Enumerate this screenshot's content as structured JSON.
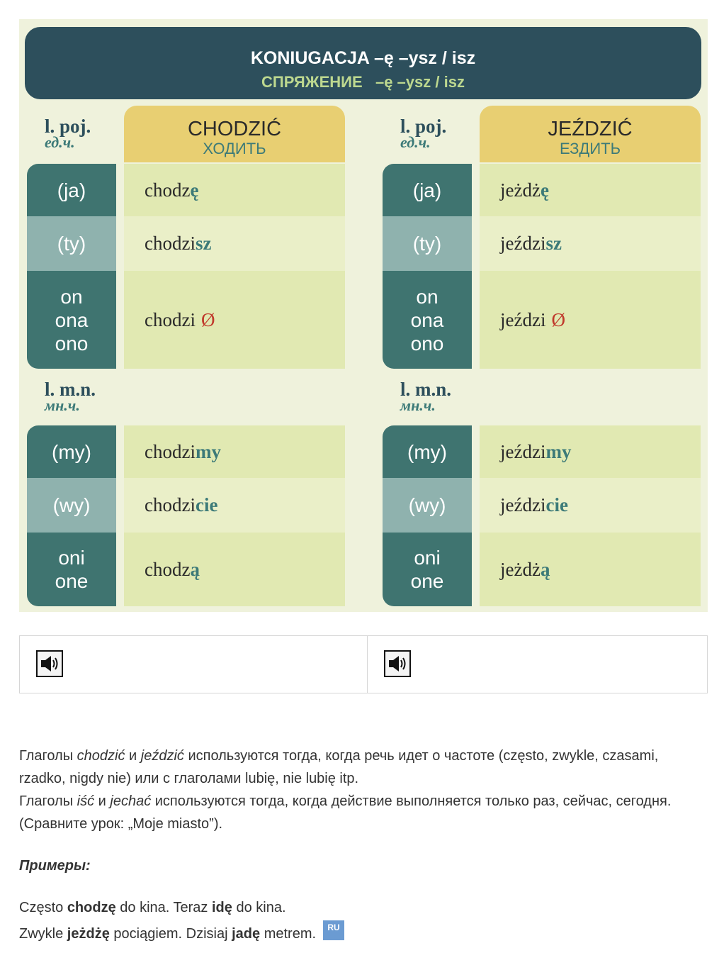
{
  "header": {
    "title": "KONIUGACJA –ę –ysz / isz",
    "subtitle_ru": "СПРЯЖЕНИЕ",
    "subtitle_suffix": "–ę –ysz / isz"
  },
  "labels": {
    "singular_pl": "l. poj.",
    "singular_ru": "ед.ч.",
    "plural_pl": "l. m.n.",
    "plural_ru": "мн.ч."
  },
  "verbs": [
    {
      "name": "CHODZIĆ",
      "name_ru": "ХОДИТЬ",
      "singular": [
        {
          "pronoun": "(ja)",
          "stem": "chodz",
          "ending": "ę",
          "zero": ""
        },
        {
          "pronoun": "(ty)",
          "stem": "chodzi",
          "ending": "sz",
          "zero": ""
        },
        {
          "pronoun": "on\nona\nono",
          "stem": "chodzi",
          "ending": "",
          "zero": "Ø"
        }
      ],
      "plural": [
        {
          "pronoun": "(my)",
          "stem": "chodzi",
          "ending": "my",
          "zero": ""
        },
        {
          "pronoun": "(wy)",
          "stem": "chodzi",
          "ending": "cie",
          "zero": ""
        },
        {
          "pronoun": "oni\none",
          "stem": "chodz",
          "ending": "ą",
          "zero": ""
        }
      ]
    },
    {
      "name": "JEŹDZIĆ",
      "name_ru": "ЕЗДИТЬ",
      "singular": [
        {
          "pronoun": "(ja)",
          "stem": "jeżdż",
          "ending": "ę",
          "zero": ""
        },
        {
          "pronoun": "(ty)",
          "stem": "jeździ",
          "ending": "sz",
          "zero": ""
        },
        {
          "pronoun": "on\nona\nono",
          "stem": "jeździ",
          "ending": "",
          "zero": "Ø"
        }
      ],
      "plural": [
        {
          "pronoun": "(my)",
          "stem": "jeździ",
          "ending": "my",
          "zero": ""
        },
        {
          "pronoun": "(wy)",
          "stem": "jeździ",
          "ending": "cie",
          "zero": ""
        },
        {
          "pronoun": "oni\none",
          "stem": "jeżdż",
          "ending": "ą",
          "zero": ""
        }
      ]
    }
  ],
  "audio": {
    "icon": "speaker-icon"
  },
  "body": {
    "p1_a": "Глаголы ",
    "p1_chodzic": "chodzić",
    "p1_b": " и ",
    "p1_jezdzic": "jeździć",
    "p1_c": " используются тогда, когда речь идет о частоте  (często, zwykle, czasami, rzadko, nigdy nie) или с глаголами  lubię, nie lubię itp.",
    "p2_a": "Глаголы ",
    "p2_isc": "iść",
    "p2_b": " и ",
    "p2_jechac": "jechać",
    "p2_c": " используются тогда, когда действие  выполняется только раз, сейчас, сегодня. (Сравните урок: „Moje miasto”).",
    "examples_heading": "Примеры:",
    "ex1_a": "Często ",
    "ex1_b": "chodzę",
    "ex1_c": " do kina. Teraz ",
    "ex1_d": "idę",
    "ex1_e": " do kina.",
    "ex2_a": "Zwykle ",
    "ex2_b": "jeżdżę",
    "ex2_c": " pociągiem. Dzisiaj ",
    "ex2_d": "jadę",
    "ex2_e": " metrem.",
    "lang_badge": "RU"
  },
  "colors": {
    "banner": "#2d4f5c",
    "panel": "#eff2dc",
    "verb_header": "#e8cf72",
    "pronoun_dark": "#3f7470",
    "pronoun_light": "#8fb2ae",
    "ending": "#3c7a78",
    "zero_marker": "#c0392b"
  }
}
